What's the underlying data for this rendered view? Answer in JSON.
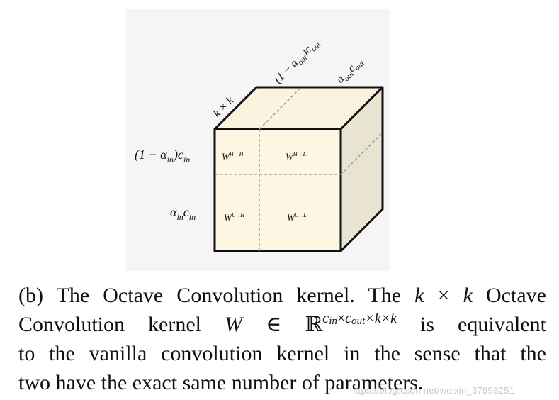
{
  "figure": {
    "top_labels": {
      "depth": "k × k",
      "channel_high": "(1 − α",
      "channel_high_sub": "out",
      "channel_high_tail": ")c",
      "channel_high_tail_sub": "out",
      "channel_low": "α",
      "channel_low_sub": "out",
      "channel_low_tail": "c",
      "channel_low_tail_sub": "out"
    },
    "side_labels": {
      "high_in": "(1 − α",
      "high_in_sub": "in",
      "high_in_tail": ")c",
      "high_in_tail_sub": "in",
      "low_in": "α",
      "low_in_sub": "in",
      "low_in_tail": "c",
      "low_in_tail_sub": "in"
    },
    "cells": {
      "hh_base": "W",
      "hh_sup": "H→H",
      "hl_base": "W",
      "hl_sup": "H→L",
      "lh_base": "W",
      "lh_sup": "L→H",
      "ll_base": "W",
      "ll_sup": "L→L"
    },
    "colors": {
      "front_face": "#fdf6e3",
      "top_face": "#fbf3df",
      "side_face": "#e9e4d2",
      "edge": "#111111",
      "divider": "#9a9a9a"
    }
  },
  "caption": {
    "line1_a": "(b) The Octave Convolution kernel. The ",
    "line1_k1": "k",
    "line1_times": " × ",
    "line1_k2": "k",
    "line1_b": " Octave",
    "line2_a": "Convolution kernel ",
    "line2_W": "W",
    "line2_in": " ∈ ℝ",
    "line2_sup_c1": "c",
    "line2_sup_in": "in",
    "line2_sup_x1": "×",
    "line2_sup_c2": "c",
    "line2_sup_out": "out",
    "line2_sup_rest": "×k×k",
    "line2_b": " is equivalent",
    "line3": "to the vanilla convolution kernel in the sense that the",
    "line4": "two have the exact same number of parameters."
  },
  "watermark": "https://blog.csdn.net/weixin_37993251"
}
